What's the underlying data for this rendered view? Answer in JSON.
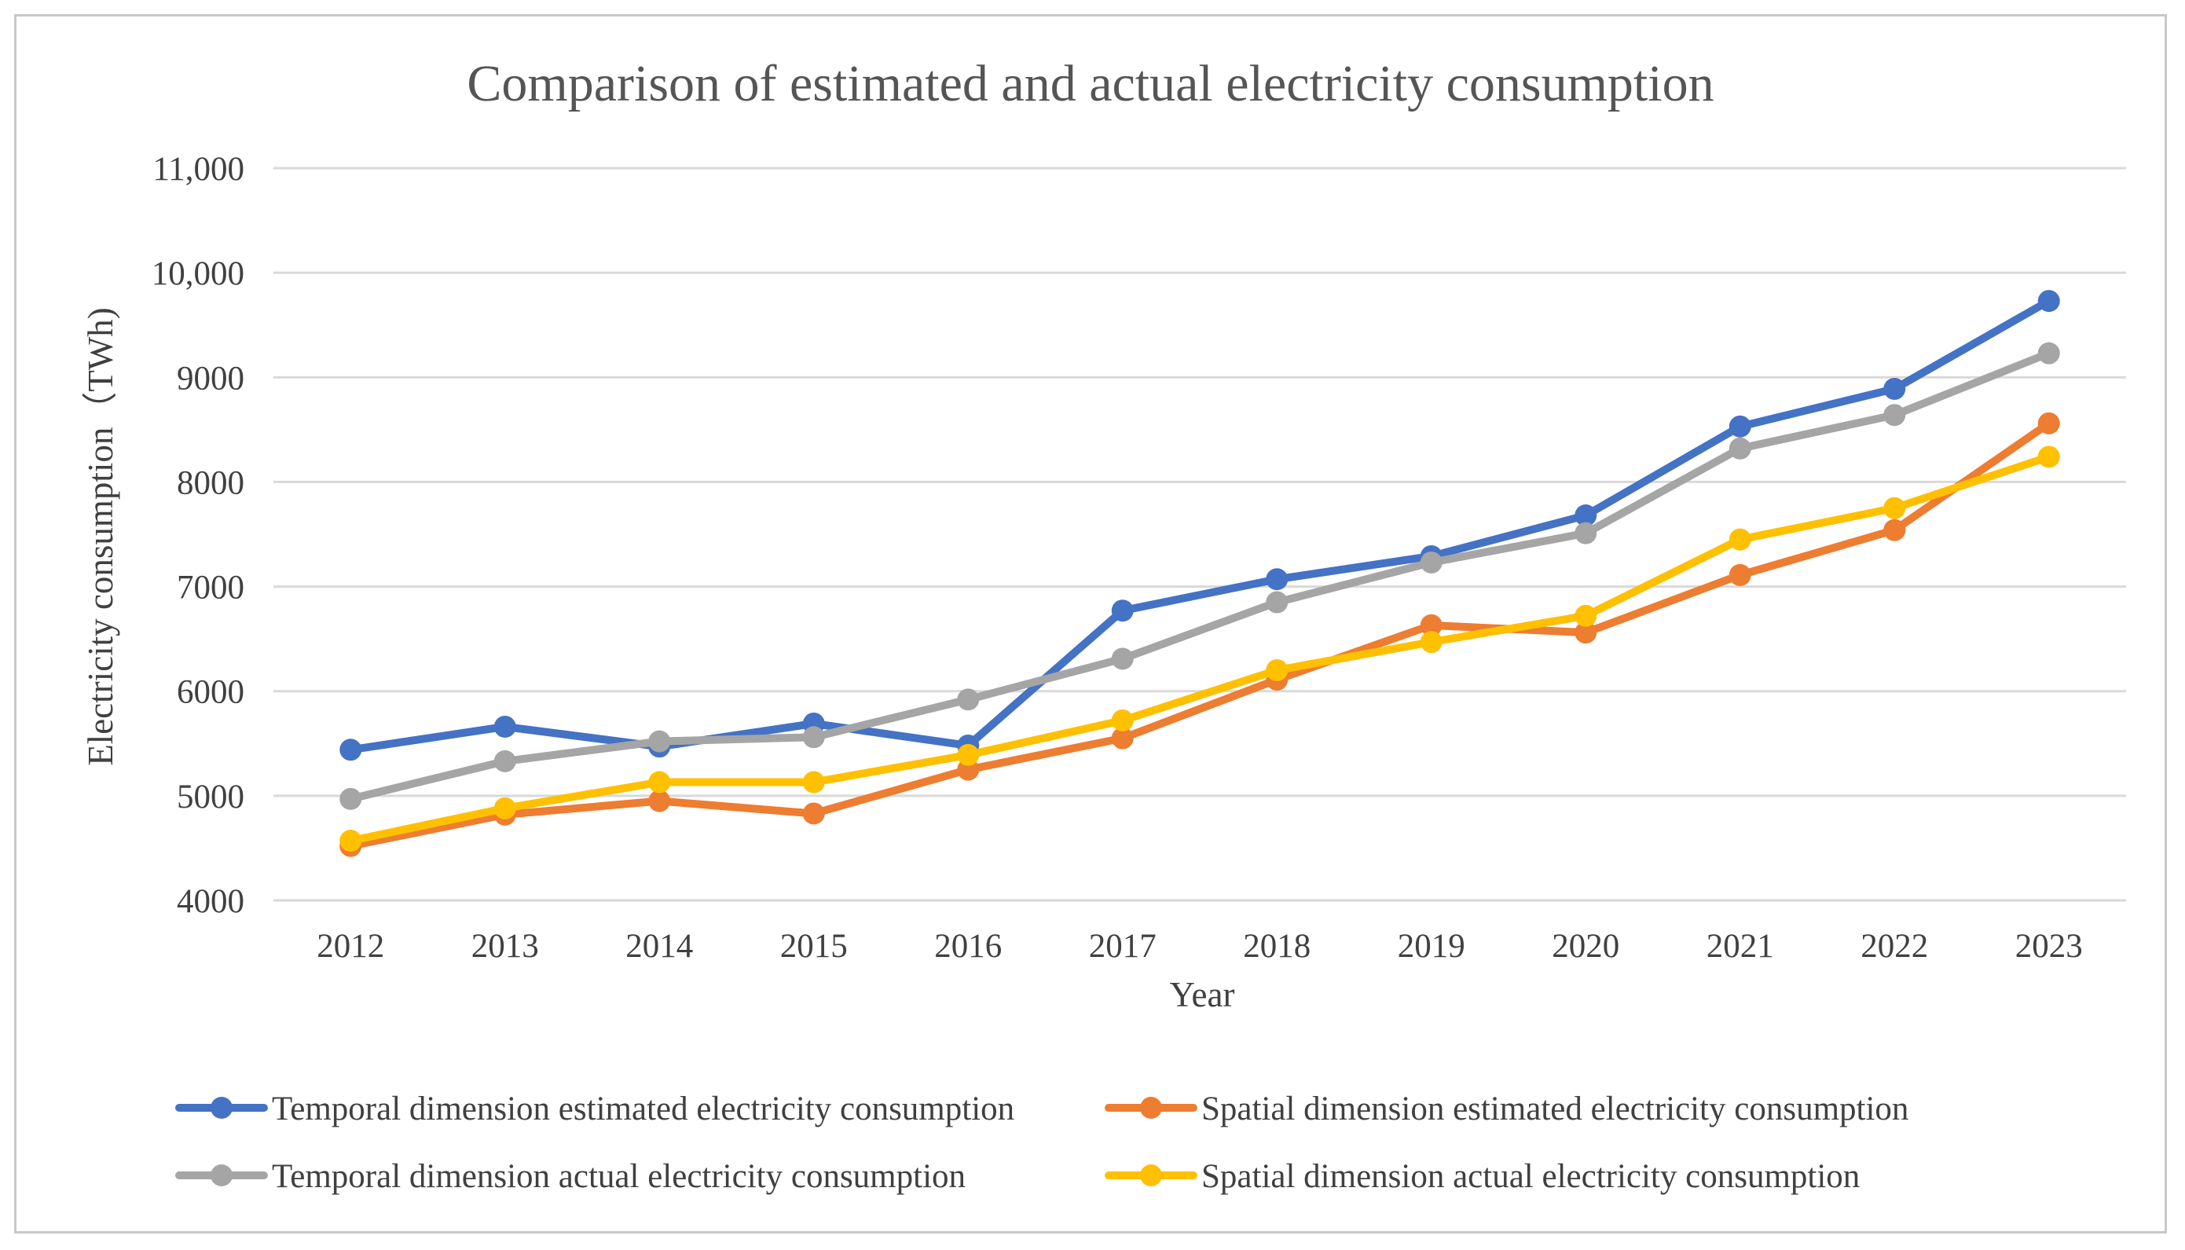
{
  "chart_data": {
    "type": "line",
    "title": "Comparison of estimated and actual electricity consumption",
    "xlabel": "Year",
    "ylabel": "Electricity consumption（TWh)",
    "ylim": [
      4000,
      11000
    ],
    "yticks": [
      {
        "value": 4000,
        "label": "4000"
      },
      {
        "value": 5000,
        "label": "5000"
      },
      {
        "value": 6000,
        "label": "6000"
      },
      {
        "value": 7000,
        "label": "7000"
      },
      {
        "value": 8000,
        "label": "8000"
      },
      {
        "value": 9000,
        "label": "9000"
      },
      {
        "value": 10000,
        "label": "10,000"
      },
      {
        "value": 11000,
        "label": "11,000"
      }
    ],
    "grid": true,
    "legend_position": "bottom",
    "categories": [
      "2012",
      "2013",
      "2014",
      "2015",
      "2016",
      "2017",
      "2018",
      "2019",
      "2020",
      "2021",
      "2022",
      "2023"
    ],
    "series": [
      {
        "name": "Temporal dimension estimated electricity consumption",
        "color": "#4472C4",
        "values": [
          5440,
          5660,
          5470,
          5690,
          5480,
          6770,
          7070,
          7290,
          7680,
          8530,
          8890,
          9730
        ]
      },
      {
        "name": "Spatial dimension estimated electricity consumption",
        "color": "#ED7D31",
        "values": [
          4520,
          4820,
          4950,
          4830,
          5250,
          5550,
          6110,
          6630,
          6560,
          7110,
          7540,
          8560
        ]
      },
      {
        "name": "Temporal dimension actual electricity consumption",
        "color": "#A5A5A5",
        "values": [
          4970,
          5330,
          5520,
          5560,
          5920,
          6310,
          6850,
          7230,
          7510,
          8320,
          8640,
          9230
        ]
      },
      {
        "name": "Spatial dimension actual electricity consumption",
        "color": "#FFC000",
        "values": [
          4570,
          4880,
          5130,
          5130,
          5390,
          5720,
          6200,
          6470,
          6720,
          7450,
          7750,
          8240
        ]
      }
    ]
  }
}
